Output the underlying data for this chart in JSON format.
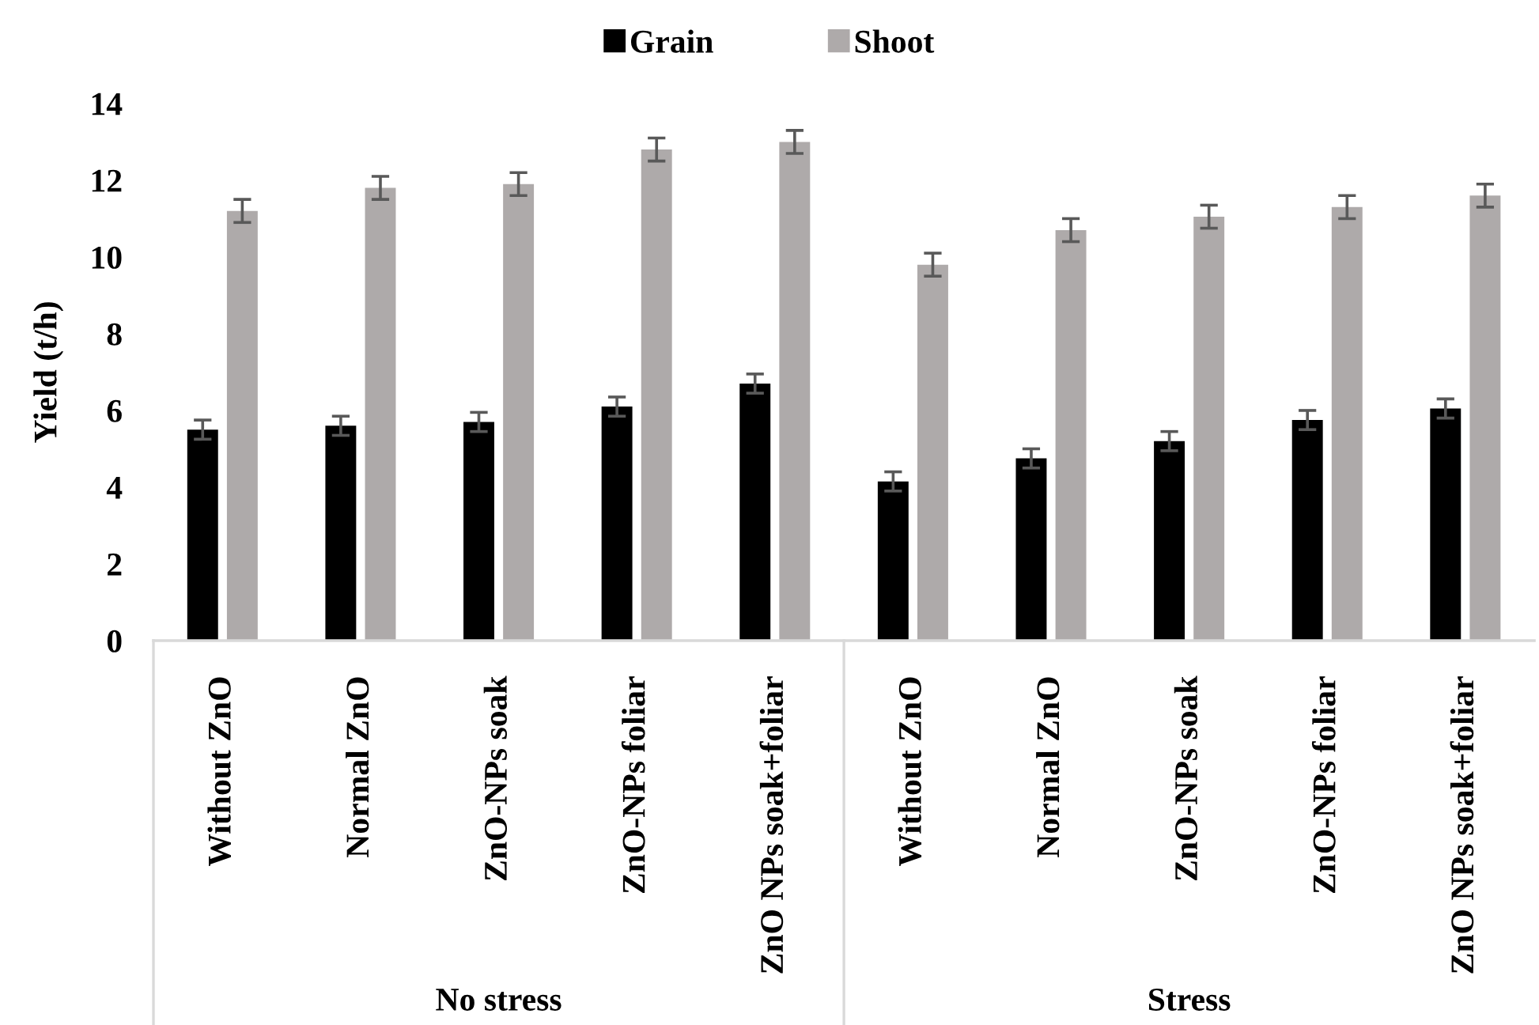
{
  "chart_data": {
    "type": "bar",
    "ylabel": "Yield (t/h)",
    "categories": [
      "Without ZnO",
      "Normal ZnO",
      "ZnO-NPs soak",
      "ZnO-NPs foliar",
      "ZnO NPs soak+foliar",
      "Without ZnO",
      "Normal ZnO",
      "ZnO-NPs soak",
      "ZnO-NPs foliar",
      "ZnO NPs soak+foliar"
    ],
    "series": [
      {
        "name": "Grain",
        "color": "#000000",
        "values": [
          5.5,
          5.6,
          5.7,
          6.1,
          6.7,
          4.15,
          4.75,
          5.2,
          5.75,
          6.05
        ],
        "errors": [
          0.25,
          0.25,
          0.25,
          0.25,
          0.25,
          0.25,
          0.25,
          0.25,
          0.25,
          0.25
        ]
      },
      {
        "name": "Shoot",
        "color": "#aeaaaa",
        "values": [
          11.2,
          11.8,
          11.9,
          12.8,
          13.0,
          9.8,
          10.7,
          11.05,
          11.3,
          11.6
        ],
        "errors": [
          0.3,
          0.3,
          0.3,
          0.3,
          0.3,
          0.3,
          0.3,
          0.3,
          0.3,
          0.3
        ]
      }
    ],
    "annotations": [
      "No stress",
      "Stress"
    ],
    "ylim": [
      0,
      14
    ],
    "yticks": [
      0,
      2,
      4,
      6,
      8,
      10,
      12,
      14
    ],
    "grid": false,
    "legend": "top"
  }
}
